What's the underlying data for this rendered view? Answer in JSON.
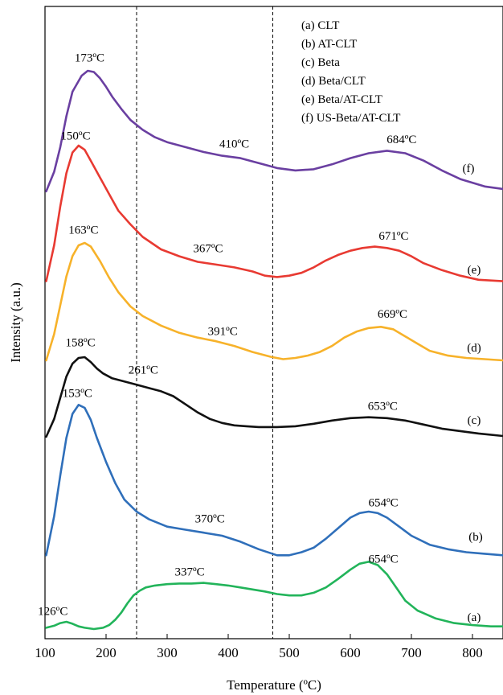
{
  "chart_data": {
    "type": "line",
    "title": "",
    "xlabel": "Temperature (ºC)",
    "ylabel": "Intensity (a.u.)",
    "xlim": [
      100,
      850
    ],
    "y_ticks_shown": false,
    "x_ticks": [
      100,
      200,
      300,
      400,
      500,
      600,
      700,
      800
    ],
    "x_tick_labels": [
      "100",
      "200",
      "300",
      "400",
      "500",
      "600",
      "700",
      "800"
    ],
    "legend": {
      "placement": "top-right",
      "entries": [
        "(a)   CLT",
        "(b)   AT-CLT",
        "(c)   Beta",
        "(d)   Beta/CLT",
        "(e)   Beta/AT-CLT",
        "(f)   US-Beta/AT-CLT"
      ]
    },
    "vertical_lines": [
      250,
      473
    ],
    "series": [
      {
        "name": "CLT",
        "tag": "(a)",
        "color": "#22b45a",
        "x": [
          102,
          115,
          125,
          135,
          145,
          155,
          165,
          180,
          195,
          205,
          215,
          225,
          235,
          245,
          255,
          265,
          280,
          300,
          320,
          340,
          360,
          380,
          400,
          420,
          440,
          460,
          480,
          500,
          520,
          540,
          560,
          580,
          600,
          615,
          630,
          645,
          660,
          675,
          690,
          710,
          740,
          770,
          800,
          830,
          850
        ],
        "y": [
          0.02,
          0.05,
          0.09,
          0.11,
          0.08,
          0.04,
          0.02,
          0.0,
          0.02,
          0.06,
          0.14,
          0.25,
          0.39,
          0.51,
          0.58,
          0.63,
          0.66,
          0.68,
          0.69,
          0.69,
          0.7,
          0.68,
          0.66,
          0.63,
          0.6,
          0.57,
          0.53,
          0.51,
          0.51,
          0.55,
          0.63,
          0.76,
          0.9,
          0.99,
          1.02,
          0.97,
          0.83,
          0.63,
          0.43,
          0.28,
          0.16,
          0.09,
          0.06,
          0.04,
          0.04
        ],
        "peak_labels": [
          {
            "x": 126,
            "text": "126ºC"
          },
          {
            "x": 337,
            "text": "337ºC"
          },
          {
            "x": 654,
            "text": "654ºC"
          }
        ]
      },
      {
        "name": "AT-CLT",
        "tag": "(b)",
        "color": "#2f6fba",
        "x": [
          102,
          115,
          125,
          135,
          145,
          155,
          165,
          175,
          185,
          200,
          215,
          230,
          250,
          270,
          300,
          330,
          360,
          390,
          420,
          450,
          480,
          500,
          520,
          540,
          560,
          580,
          600,
          615,
          630,
          645,
          660,
          680,
          700,
          730,
          760,
          790,
          820,
          850
        ],
        "y": [
          0.02,
          0.28,
          0.55,
          0.8,
          0.96,
          1.02,
          1.0,
          0.92,
          0.8,
          0.64,
          0.5,
          0.39,
          0.31,
          0.26,
          0.21,
          0.19,
          0.17,
          0.15,
          0.11,
          0.06,
          0.02,
          0.02,
          0.04,
          0.07,
          0.13,
          0.2,
          0.27,
          0.3,
          0.31,
          0.3,
          0.27,
          0.21,
          0.15,
          0.09,
          0.06,
          0.04,
          0.03,
          0.02
        ],
        "peak_labels": [
          {
            "x": 153,
            "text": "153ºC"
          },
          {
            "x": 370,
            "text": "370ºC"
          },
          {
            "x": 654,
            "text": "654ºC"
          }
        ]
      },
      {
        "name": "Beta",
        "tag": "(c)",
        "color": "#111111",
        "x": [
          102,
          115,
          125,
          135,
          145,
          155,
          165,
          175,
          185,
          195,
          210,
          230,
          250,
          270,
          290,
          310,
          330,
          350,
          370,
          390,
          410,
          430,
          450,
          480,
          510,
          540,
          570,
          600,
          630,
          660,
          690,
          720,
          750,
          780,
          810,
          850
        ],
        "y": [
          0.02,
          0.24,
          0.5,
          0.76,
          0.92,
          0.99,
          1.0,
          0.94,
          0.86,
          0.8,
          0.74,
          0.7,
          0.66,
          0.62,
          0.58,
          0.52,
          0.42,
          0.32,
          0.24,
          0.19,
          0.16,
          0.15,
          0.14,
          0.14,
          0.15,
          0.18,
          0.22,
          0.25,
          0.26,
          0.25,
          0.22,
          0.17,
          0.12,
          0.09,
          0.06,
          0.03
        ],
        "peak_labels": [
          {
            "x": 158,
            "text": "158ºC"
          },
          {
            "x": 261,
            "text": "261ºC"
          },
          {
            "x": 653,
            "text": "653ºC"
          }
        ]
      },
      {
        "name": "Beta/CLT",
        "tag": "(d)",
        "color": "#f7b22a",
        "x": [
          102,
          115,
          125,
          135,
          145,
          155,
          165,
          175,
          190,
          205,
          220,
          240,
          260,
          290,
          320,
          350,
          380,
          410,
          440,
          470,
          490,
          510,
          530,
          550,
          570,
          590,
          610,
          630,
          650,
          670,
          690,
          710,
          730,
          760,
          790,
          820,
          850
        ],
        "y": [
          0.02,
          0.24,
          0.48,
          0.72,
          0.89,
          0.98,
          1.0,
          0.97,
          0.85,
          0.71,
          0.59,
          0.47,
          0.39,
          0.31,
          0.25,
          0.21,
          0.18,
          0.14,
          0.09,
          0.05,
          0.03,
          0.04,
          0.06,
          0.09,
          0.14,
          0.21,
          0.26,
          0.29,
          0.3,
          0.28,
          0.22,
          0.16,
          0.1,
          0.06,
          0.04,
          0.03,
          0.02
        ],
        "peak_labels": [
          {
            "x": 163,
            "text": "163ºC"
          },
          {
            "x": 391,
            "text": "391ºC"
          },
          {
            "x": 669,
            "text": "669ºC"
          }
        ]
      },
      {
        "name": "Beta/AT-CLT",
        "tag": "(e)",
        "color": "#e83a32",
        "x": [
          102,
          115,
          125,
          135,
          145,
          155,
          165,
          175,
          190,
          205,
          220,
          240,
          260,
          290,
          320,
          350,
          380,
          410,
          440,
          460,
          480,
          500,
          520,
          540,
          560,
          580,
          600,
          620,
          640,
          660,
          680,
          700,
          720,
          750,
          780,
          810,
          850
        ],
        "y": [
          0.02,
          0.28,
          0.56,
          0.8,
          0.95,
          1.0,
          0.97,
          0.89,
          0.77,
          0.65,
          0.53,
          0.43,
          0.34,
          0.25,
          0.2,
          0.16,
          0.14,
          0.12,
          0.09,
          0.06,
          0.05,
          0.06,
          0.08,
          0.12,
          0.17,
          0.21,
          0.24,
          0.26,
          0.27,
          0.26,
          0.24,
          0.2,
          0.15,
          0.1,
          0.06,
          0.03,
          0.02
        ],
        "peak_labels": [
          {
            "x": 150,
            "text": "150ºC"
          },
          {
            "x": 367,
            "text": "367ºC"
          },
          {
            "x": 671,
            "text": "671ºC"
          }
        ]
      },
      {
        "name": "US-Beta/AT-CLT",
        "tag": "(f)",
        "color": "#6a3fa1",
        "x": [
          102,
          115,
          125,
          135,
          145,
          160,
          170,
          180,
          190,
          200,
          210,
          225,
          240,
          260,
          280,
          300,
          330,
          360,
          390,
          420,
          450,
          480,
          510,
          540,
          570,
          600,
          630,
          660,
          690,
          720,
          750,
          780,
          820,
          850
        ],
        "y": [
          0.02,
          0.18,
          0.38,
          0.63,
          0.83,
          0.96,
          1.0,
          0.99,
          0.94,
          0.87,
          0.79,
          0.69,
          0.6,
          0.52,
          0.46,
          0.42,
          0.38,
          0.34,
          0.31,
          0.29,
          0.25,
          0.21,
          0.19,
          0.2,
          0.24,
          0.29,
          0.33,
          0.35,
          0.33,
          0.27,
          0.19,
          0.12,
          0.06,
          0.04
        ],
        "peak_labels": [
          {
            "x": 173,
            "text": "173ºC"
          },
          {
            "x": 410,
            "text": "410ºC"
          },
          {
            "x": 684,
            "text": "684ºC"
          }
        ]
      }
    ]
  }
}
